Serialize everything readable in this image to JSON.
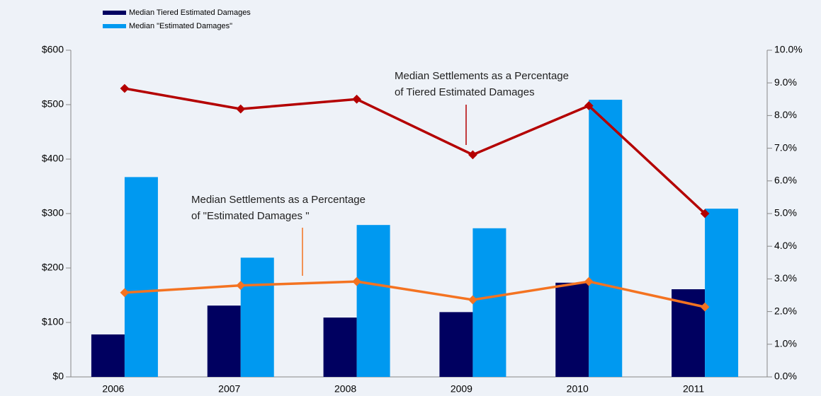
{
  "chart_data": {
    "type": "bar",
    "categories": [
      "2006",
      "2007",
      "2008",
      "2009",
      "2010",
      "2011"
    ],
    "series": [
      {
        "name": "Median Tiered Estimated Damages",
        "type": "bar",
        "color": "#000060",
        "values": [
          78,
          131,
          109,
          119,
          173,
          161
        ]
      },
      {
        "name": "Median \"Estimated Damages\"",
        "type": "bar",
        "color": "#0099f0",
        "values": [
          367,
          219,
          279,
          273,
          509,
          309
        ]
      },
      {
        "name": "Median Settlements as a Percentage of Tiered Estimated Damages",
        "type": "line",
        "axis": "y2",
        "color": "#b40000",
        "values": [
          8.83,
          8.2,
          8.5,
          6.8,
          8.3,
          5.0
        ]
      },
      {
        "name": "Median Settlements as a Percentage of \"Estimated Damages\"",
        "type": "line",
        "axis": "y2",
        "color": "#f47321",
        "values": [
          2.58,
          2.8,
          2.92,
          2.36,
          2.92,
          2.14
        ]
      }
    ],
    "ylim": [
      0,
      600
    ],
    "yticks": [
      {
        "value": 0,
        "label": "$0"
      },
      {
        "value": 100,
        "label": "$100"
      },
      {
        "value": 200,
        "label": "$200"
      },
      {
        "value": 300,
        "label": "$300"
      },
      {
        "value": 400,
        "label": "$400"
      },
      {
        "value": 500,
        "label": "$500"
      },
      {
        "value": 600,
        "label": "$600"
      }
    ],
    "y2lim": [
      0,
      10
    ],
    "y2ticks": [
      {
        "value": 0,
        "label": "0.0%"
      },
      {
        "value": 1,
        "label": "1.0%"
      },
      {
        "value": 2,
        "label": "2.0%"
      },
      {
        "value": 3,
        "label": "3.0%"
      },
      {
        "value": 4,
        "label": "4.0%"
      },
      {
        "value": 5,
        "label": "5.0%"
      },
      {
        "value": 6,
        "label": "6.0%"
      },
      {
        "value": 7,
        "label": "7.0%"
      },
      {
        "value": 8,
        "label": "8.0%"
      },
      {
        "value": 9,
        "label": "9.0%"
      },
      {
        "value": 10,
        "label": "10.0%"
      }
    ],
    "annotations": [
      {
        "lines": [
          "Median Settlements as a Percentage",
          "of Tiered Estimated Damages"
        ],
        "color": "#b40000"
      },
      {
        "lines": [
          "Median Settlements as a Percentage",
          "of \"Estimated Damages \""
        ],
        "color": "#f47321"
      }
    ],
    "legend": "top-left"
  }
}
